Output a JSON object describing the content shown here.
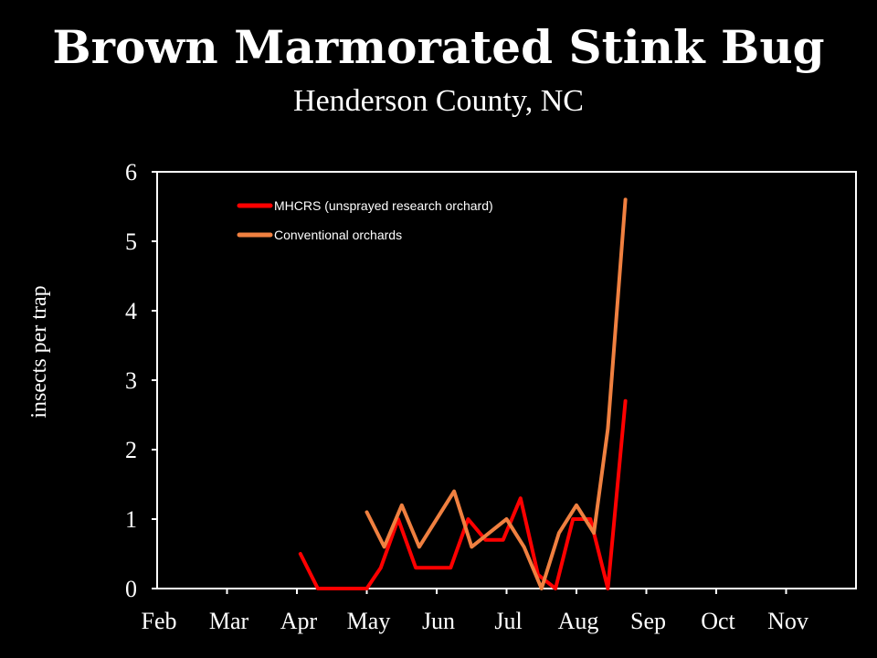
{
  "chart_data": {
    "type": "line",
    "title": "Brown Marmorated Stink Bug",
    "subtitle": "Henderson County, NC",
    "ylabel": "insects per trap",
    "xlabel": "",
    "ylim": [
      0,
      6
    ],
    "yticks": [
      0,
      1,
      2,
      3,
      4,
      5,
      6
    ],
    "months": [
      "Feb",
      "Mar",
      "Apr",
      "May",
      "Jun",
      "Jul",
      "Aug",
      "Sep",
      "Oct",
      "Nov"
    ],
    "xlim": [
      0,
      10
    ],
    "legend_position": "top-left",
    "grid": false,
    "series": [
      {
        "name": "MHCRS (unsprayed research orchard)",
        "color": "#ff0000",
        "x": [
          2.05,
          2.3,
          2.55,
          2.8,
          3.0,
          3.2,
          3.45,
          3.7,
          3.95,
          4.2,
          4.45,
          4.7,
          4.95,
          5.2,
          5.45,
          5.7,
          5.95,
          6.2,
          6.45,
          6.7
        ],
        "values": [
          0.5,
          0.0,
          0.0,
          0.0,
          0.0,
          0.3,
          1.0,
          0.3,
          0.3,
          0.3,
          1.0,
          0.7,
          0.7,
          1.3,
          0.2,
          0.0,
          1.0,
          1.0,
          0.0,
          2.7
        ]
      },
      {
        "name": "Conventional orchards",
        "color": "#f08040",
        "x": [
          3.0,
          3.25,
          3.5,
          3.75,
          4.0,
          4.25,
          4.5,
          4.75,
          5.0,
          5.25,
          5.5,
          5.75,
          6.0,
          6.25,
          6.45,
          6.7
        ],
        "values": [
          1.1,
          0.6,
          1.2,
          0.6,
          1.0,
          1.4,
          0.6,
          0.8,
          1.0,
          0.6,
          0.0,
          0.8,
          1.2,
          0.8,
          2.3,
          5.6
        ]
      }
    ]
  }
}
